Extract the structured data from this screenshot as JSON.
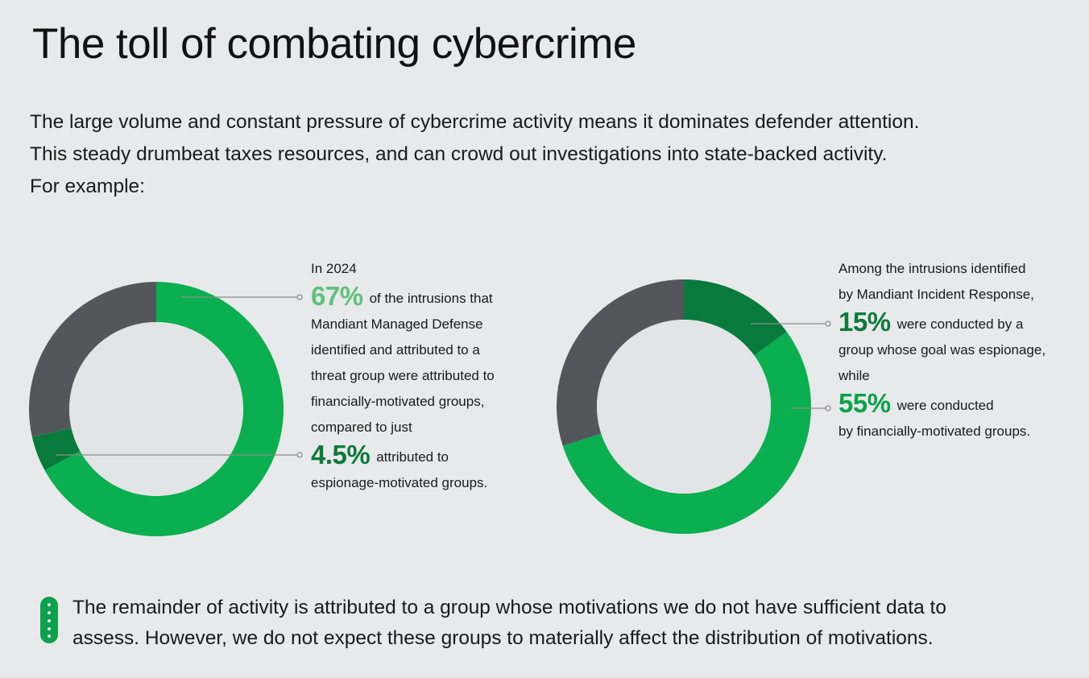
{
  "title": "The toll of combating cybercrime",
  "intro": [
    "The large volume and constant pressure of cybercrime activity means it dominates defender attention.",
    "This steady drumbeat taxes resources, and can crowd out investigations into state-backed activity.",
    "For example:"
  ],
  "colors": {
    "financial": "#0aaf50",
    "espionage": "#087a3c",
    "remainder": "#53575b",
    "hole": "#e3e4e6",
    "leader": "#8a8d90"
  },
  "chart_data": [
    {
      "type": "pie",
      "variant": "donut",
      "slices": [
        {
          "key": "financial",
          "value": 67
        },
        {
          "key": "espionage",
          "value": 4.5
        },
        {
          "key": "remainder",
          "value": 28.5
        }
      ]
    },
    {
      "type": "pie",
      "variant": "donut",
      "slices": [
        {
          "key": "espionage",
          "value": 15
        },
        {
          "key": "financial",
          "value": 55
        },
        {
          "key": "remainder",
          "value": 30
        }
      ]
    }
  ],
  "callout1": {
    "line1": "In 2024",
    "pct1": "67%",
    "line2": "of the intrusions that",
    "line3": "Mandiant Managed Defense",
    "line4": "identified and attributed to a",
    "line5": "threat group were attributed to",
    "line6": "financially-motivated groups,",
    "line7": "compared to just",
    "pct2": "4.5%",
    "line8": "attributed to",
    "line9": "espionage-motivated groups."
  },
  "callout2": {
    "line1": "Among the intrusions identified",
    "line2": "by Mandiant Incident Response,",
    "pct1": "15%",
    "line3": "were conducted by a",
    "line4": "group whose goal was espionage,",
    "line5": "while",
    "pct2": "55%",
    "line6": "were conducted",
    "line7": "by financially-motivated groups."
  },
  "note": [
    "The remainder of activity is attributed to a group whose motivations we do not have sufficient data to",
    "assess. However, we do not expect these groups to materially affect the distribution of motivations."
  ]
}
